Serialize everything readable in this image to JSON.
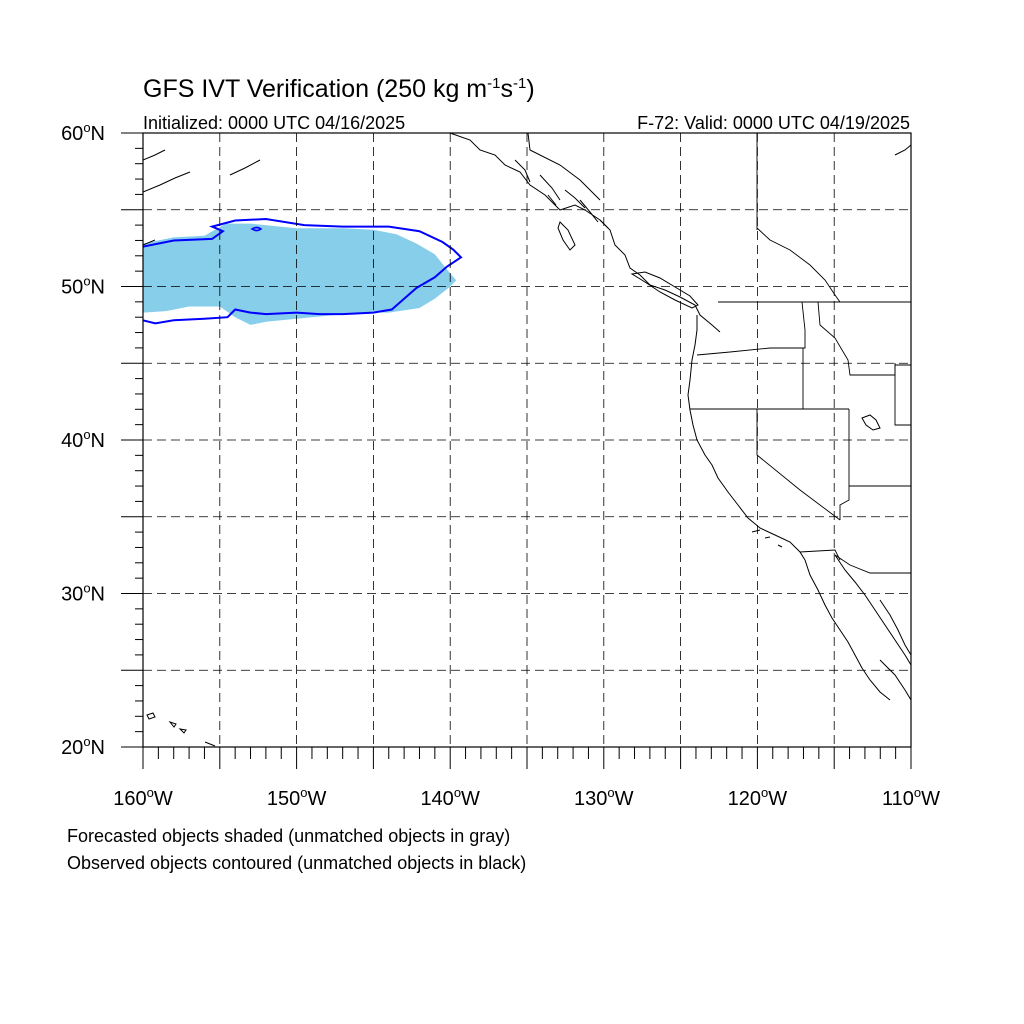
{
  "title": {
    "main": "GFS IVT Verification (250 kg m",
    "sup1": "-1",
    "s": "s",
    "sup2": "-1",
    "close": ")"
  },
  "initialized": "Initialized: 0000 UTC 04/16/2025",
  "valid": "F-72: Valid: 0000 UTC 04/19/2025",
  "map": {
    "lon_range": [
      -160,
      -110
    ],
    "lat_range": [
      20,
      60
    ],
    "lat_ticks": [
      {
        "value": 60,
        "label": "60",
        "suffix": "N"
      },
      {
        "value": 50,
        "label": "50",
        "suffix": "N"
      },
      {
        "value": 40,
        "label": "40",
        "suffix": "N"
      },
      {
        "value": 30,
        "label": "30",
        "suffix": "N"
      },
      {
        "value": 20,
        "label": "20",
        "suffix": "N"
      }
    ],
    "lon_ticks": [
      {
        "value": -160,
        "label": "160",
        "suffix": "W"
      },
      {
        "value": -150,
        "label": "150",
        "suffix": "W"
      },
      {
        "value": -140,
        "label": "140",
        "suffix": "W"
      },
      {
        "value": -130,
        "label": "130",
        "suffix": "W"
      },
      {
        "value": -120,
        "label": "120",
        "suffix": "W"
      },
      {
        "value": -110,
        "label": "110",
        "suffix": "W"
      }
    ],
    "gridline_lons": [
      -155,
      -150,
      -145,
      -140,
      -135,
      -130,
      -125,
      -120,
      -115
    ],
    "gridline_lats": [
      25,
      30,
      35,
      40,
      45,
      50,
      55
    ],
    "forecast_fill_color": "#87ceeb",
    "observed_contour_color": "#0000ff",
    "forecast_object": [
      [
        -160,
        52.8
      ],
      [
        -158,
        53.2
      ],
      [
        -156,
        53.3
      ],
      [
        -154.6,
        54.1
      ],
      [
        -153,
        54.1
      ],
      [
        -150,
        53.8
      ],
      [
        -147,
        53.8
      ],
      [
        -145,
        53.7
      ],
      [
        -143.5,
        53.4
      ],
      [
        -142.2,
        52.8
      ],
      [
        -141,
        52.1
      ],
      [
        -140.2,
        51.1
      ],
      [
        -139.6,
        50.4
      ],
      [
        -140,
        50.0
      ],
      [
        -141,
        49.2
      ],
      [
        -142,
        48.6
      ],
      [
        -144,
        48.3
      ],
      [
        -146,
        48.3
      ],
      [
        -148,
        48.1
      ],
      [
        -150,
        47.9
      ],
      [
        -152,
        47.7
      ],
      [
        -153,
        47.5
      ],
      [
        -154,
        48.0
      ],
      [
        -155,
        48.7
      ],
      [
        -157,
        48.7
      ],
      [
        -158.5,
        48.4
      ],
      [
        -160,
        48.3
      ]
    ],
    "observed_object": [
      [
        -160,
        52.6
      ],
      [
        -158,
        53.0
      ],
      [
        -155.5,
        53.1
      ],
      [
        -154.8,
        53.6
      ],
      [
        -155.5,
        53.9
      ],
      [
        -154,
        54.3
      ],
      [
        -152,
        54.4
      ],
      [
        -149.5,
        54.0
      ],
      [
        -147,
        53.9
      ],
      [
        -144,
        53.9
      ],
      [
        -142,
        53.6
      ],
      [
        -140.5,
        52.9
      ],
      [
        -139.8,
        52.4
      ],
      [
        -139.3,
        51.9
      ],
      [
        -140.2,
        51.3
      ],
      [
        -141,
        50.6
      ],
      [
        -142.2,
        49.9
      ],
      [
        -143,
        49.2
      ],
      [
        -143.8,
        48.5
      ],
      [
        -145,
        48.3
      ],
      [
        -147,
        48.2
      ],
      [
        -148.5,
        48.2
      ],
      [
        -150,
        48.3
      ],
      [
        -152,
        48.2
      ],
      [
        -153,
        48.3
      ],
      [
        -154,
        48.5
      ],
      [
        -154.5,
        48.0
      ],
      [
        -156,
        47.9
      ],
      [
        -158,
        47.8
      ],
      [
        -159.2,
        47.6
      ],
      [
        -160,
        47.8
      ]
    ]
  },
  "notes": {
    "forecast": "Forecasted objects shaded (unmatched objects in gray)",
    "observed": "Observed objects contoured (unmatched objects in black)"
  }
}
